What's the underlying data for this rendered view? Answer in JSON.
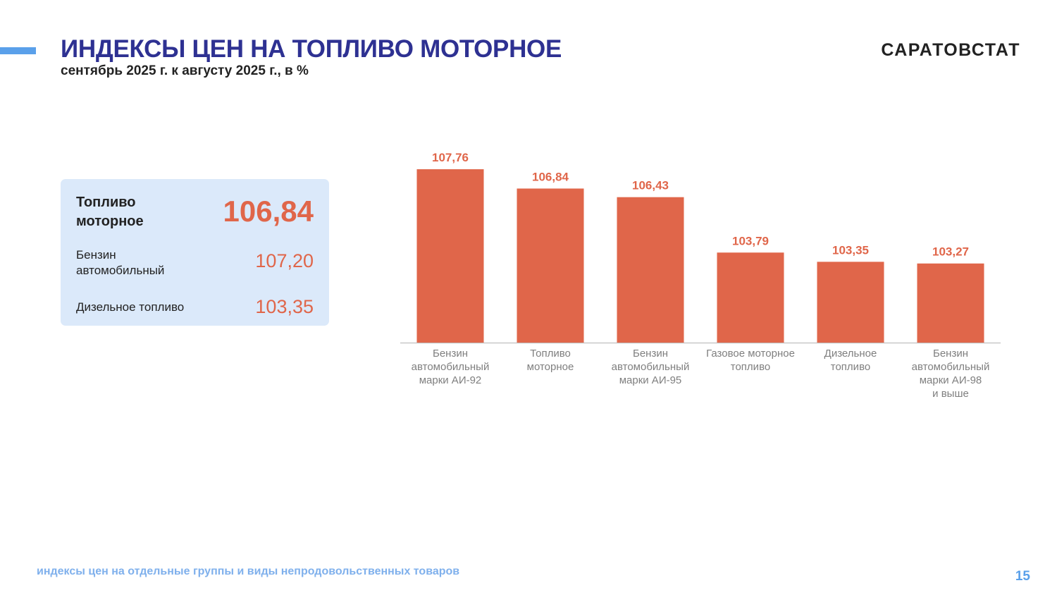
{
  "header": {
    "title": "ИНДЕКСЫ ЦЕН НА ТОПЛИВО МОТОРНОЕ",
    "subtitle": "сентябрь 2025 г. к августу 2025 г., в %",
    "logo": "САРАТОВСТАТ"
  },
  "summary": {
    "main": {
      "label": "Топливо моторное",
      "value": "106,84"
    },
    "items": [
      {
        "label": "Бензин автомобильный",
        "value": "107,20"
      },
      {
        "label": "Дизельное топливо",
        "value": "103,35"
      }
    ]
  },
  "chart_data": {
    "type": "bar",
    "categories": [
      [
        "Бензин",
        "автомобильный",
        "марки АИ-92"
      ],
      [
        "Топливо",
        "моторное"
      ],
      [
        "Бензин",
        "автомобильный",
        "марки АИ-95"
      ],
      [
        "Газовое моторное",
        "топливо"
      ],
      [
        "Дизельное",
        "топливо"
      ],
      [
        "Бензин",
        "автомобильный",
        "марки АИ-98",
        "и выше"
      ]
    ],
    "values": [
      107.76,
      106.84,
      106.43,
      103.79,
      103.35,
      103.27
    ],
    "labels": [
      "107,76",
      "106,84",
      "106,43",
      "103,79",
      "103,35",
      "103,27"
    ],
    "bar_color": "#e0664a",
    "label_color": "#e0664a",
    "ylim": [
      99.5,
      108.4
    ],
    "title": "",
    "xlabel": "",
    "ylabel": ""
  },
  "footer": {
    "text": "индексы цен на отдельные группы и виды непродовольственных товаров",
    "page_number": "15"
  }
}
